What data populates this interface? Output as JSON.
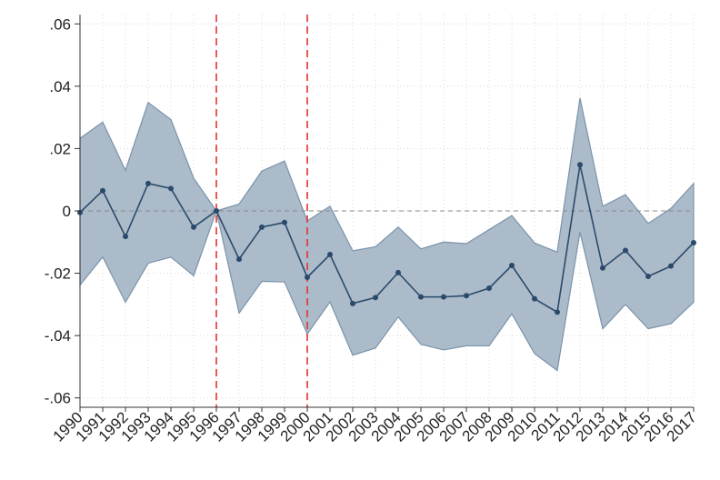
{
  "chart_data": {
    "type": "line",
    "x": [
      "1990",
      "1991",
      "1992",
      "1993",
      "1994",
      "1995",
      "1996",
      "1997",
      "1998",
      "1999",
      "2000",
      "2001",
      "2002",
      "2003",
      "2004",
      "2005",
      "2006",
      "2007",
      "2008",
      "2009",
      "2010",
      "2011",
      "2012",
      "2013",
      "2014",
      "2015",
      "2016",
      "2017"
    ],
    "series": [
      {
        "values": [
          -0.0005,
          0.0065,
          -0.0082,
          0.0088,
          0.0072,
          -0.0052,
          0.0,
          -0.0155,
          -0.0052,
          -0.0037,
          -0.0213,
          -0.014,
          -0.0297,
          -0.0278,
          -0.0198,
          -0.0276,
          -0.0276,
          -0.0272,
          -0.0248,
          -0.0175,
          -0.0282,
          -0.0325,
          0.0148,
          -0.0183,
          -0.0127,
          -0.021,
          -0.0177,
          -0.0102
        ],
        "lower": [
          -0.0238,
          -0.0148,
          -0.0293,
          -0.0168,
          -0.0148,
          -0.0208,
          0.0,
          -0.0328,
          -0.0226,
          -0.0228,
          -0.0395,
          -0.0292,
          -0.0463,
          -0.044,
          -0.034,
          -0.0428,
          -0.0446,
          -0.0433,
          -0.0433,
          -0.033,
          -0.0458,
          -0.0512,
          -0.0068,
          -0.0378,
          -0.03,
          -0.0378,
          -0.0362,
          -0.0293
        ],
        "upper": [
          0.0233,
          0.0285,
          0.013,
          0.0348,
          0.0293,
          0.0105,
          0.0,
          0.0022,
          0.0128,
          0.016,
          -0.0032,
          0.0015,
          -0.0128,
          -0.0115,
          -0.0052,
          -0.0122,
          -0.01,
          -0.0105,
          -0.006,
          -0.0015,
          -0.0103,
          -0.0132,
          0.0362,
          0.0015,
          0.0052,
          -0.004,
          0.0008,
          0.0088
        ]
      }
    ],
    "yticks": [
      ".06",
      ".04",
      ".02",
      "0",
      "-.02",
      "-.04",
      "-.06"
    ],
    "yticks_values": [
      0.06,
      0.04,
      0.02,
      0,
      -0.02,
      -0.04,
      -0.06
    ],
    "ylim": [
      -0.063,
      0.063
    ],
    "reference_lines": {
      "vertical_x": [
        "1996",
        "2000"
      ],
      "horizontal_y": 0
    },
    "grid": true,
    "title": "",
    "xlabel": "",
    "ylabel": "",
    "colors": {
      "line": "#2b4a6b",
      "band": "#a7b7c6",
      "band_edge": "#7a93ab",
      "reference_vertical": "#e53030",
      "reference_horizontal": "#888888",
      "grid": "#d8d8d8"
    }
  }
}
